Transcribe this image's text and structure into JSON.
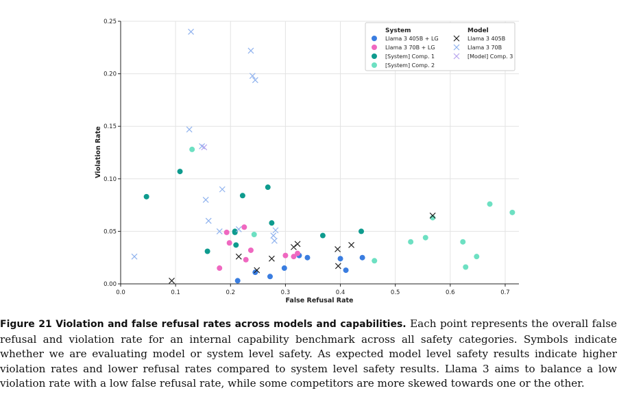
{
  "chart_data": {
    "type": "scatter",
    "title": "",
    "xlabel": "False Refusal Rate",
    "ylabel": "Violation Rate",
    "xlim": [
      0.0,
      0.725
    ],
    "ylim": [
      0.0,
      0.25
    ],
    "x_ticks": [
      "0.0",
      "0.1",
      "0.2",
      "0.3",
      "0.4",
      "0.5",
      "0.6",
      "0.7"
    ],
    "y_ticks": [
      "0.00",
      "0.05",
      "0.10",
      "0.15",
      "0.20",
      "0.25"
    ],
    "grid": true,
    "legend_position": "top-right",
    "legend": {
      "system_title": "System",
      "model_title": "Model"
    },
    "series": [
      {
        "name": "Llama 3 405B + LG",
        "group": "System",
        "marker": "circle",
        "color": "#3a7de0",
        "points": [
          [
            0.213,
            0.003
          ],
          [
            0.245,
            0.011
          ],
          [
            0.272,
            0.007
          ],
          [
            0.298,
            0.015
          ],
          [
            0.325,
            0.027
          ],
          [
            0.34,
            0.025
          ],
          [
            0.4,
            0.024
          ],
          [
            0.41,
            0.013
          ],
          [
            0.44,
            0.025
          ]
        ]
      },
      {
        "name": "Llama 3 70B + LG",
        "group": "System",
        "marker": "circle",
        "color": "#ef68c0",
        "points": [
          [
            0.18,
            0.015
          ],
          [
            0.193,
            0.049
          ],
          [
            0.198,
            0.039
          ],
          [
            0.225,
            0.054
          ],
          [
            0.228,
            0.023
          ],
          [
            0.237,
            0.032
          ],
          [
            0.3,
            0.027
          ],
          [
            0.315,
            0.026
          ],
          [
            0.322,
            0.029
          ]
        ]
      },
      {
        "name": "[System] Comp. 1",
        "group": "System",
        "marker": "circle",
        "color": "#0e9b8e",
        "points": [
          [
            0.047,
            0.083
          ],
          [
            0.108,
            0.107
          ],
          [
            0.158,
            0.031
          ],
          [
            0.208,
            0.05
          ],
          [
            0.208,
            0.049
          ],
          [
            0.21,
            0.037
          ],
          [
            0.222,
            0.084
          ],
          [
            0.268,
            0.092
          ],
          [
            0.275,
            0.058
          ],
          [
            0.368,
            0.046
          ],
          [
            0.438,
            0.05
          ]
        ]
      },
      {
        "name": "[System] Comp. 2",
        "group": "System",
        "marker": "circle",
        "color": "#6de0c2",
        "points": [
          [
            0.13,
            0.128
          ],
          [
            0.243,
            0.047
          ],
          [
            0.462,
            0.022
          ],
          [
            0.528,
            0.04
          ],
          [
            0.555,
            0.044
          ],
          [
            0.568,
            0.063
          ],
          [
            0.623,
            0.04
          ],
          [
            0.628,
            0.016
          ],
          [
            0.648,
            0.026
          ],
          [
            0.672,
            0.076
          ],
          [
            0.713,
            0.068
          ]
        ]
      },
      {
        "name": "Llama 3 405B",
        "group": "Model",
        "marker": "x",
        "color": "#222222",
        "points": [
          [
            0.093,
            0.003
          ],
          [
            0.215,
            0.026
          ],
          [
            0.248,
            0.013
          ],
          [
            0.275,
            0.024
          ],
          [
            0.315,
            0.035
          ],
          [
            0.322,
            0.038
          ],
          [
            0.395,
            0.033
          ],
          [
            0.396,
            0.017
          ],
          [
            0.42,
            0.037
          ],
          [
            0.568,
            0.065
          ]
        ]
      },
      {
        "name": "Llama 3 70B",
        "group": "Model",
        "marker": "x",
        "color": "#8fb2ee",
        "points": [
          [
            0.025,
            0.026
          ],
          [
            0.128,
            0.24
          ],
          [
            0.125,
            0.147
          ],
          [
            0.148,
            0.131
          ],
          [
            0.155,
            0.08
          ],
          [
            0.16,
            0.06
          ],
          [
            0.18,
            0.05
          ],
          [
            0.185,
            0.09
          ],
          [
            0.215,
            0.052
          ],
          [
            0.237,
            0.222
          ],
          [
            0.24,
            0.198
          ],
          [
            0.245,
            0.194
          ],
          [
            0.278,
            0.046
          ],
          [
            0.28,
            0.041
          ],
          [
            0.282,
            0.051
          ]
        ]
      },
      {
        "name": "[Model] Comp. 3",
        "group": "Model",
        "marker": "x",
        "color": "#b7a4ee",
        "points": [
          [
            0.152,
            0.13
          ]
        ]
      }
    ]
  },
  "caption": {
    "title": "Figure 21 Violation and false refusal rates across models and capabilities.",
    "body": "Each point represents the overall false refusal and violation rate for an internal capability benchmark across all safety categories. Symbols indicate whether we are evaluating model or system level safety. As expected model level safety results indicate higher violation rates and lower refusal rates compared to system level safety results. Llama 3 aims to balance a low violation rate with a low false refusal rate, while some competitors are more skewed towards one or the other."
  }
}
